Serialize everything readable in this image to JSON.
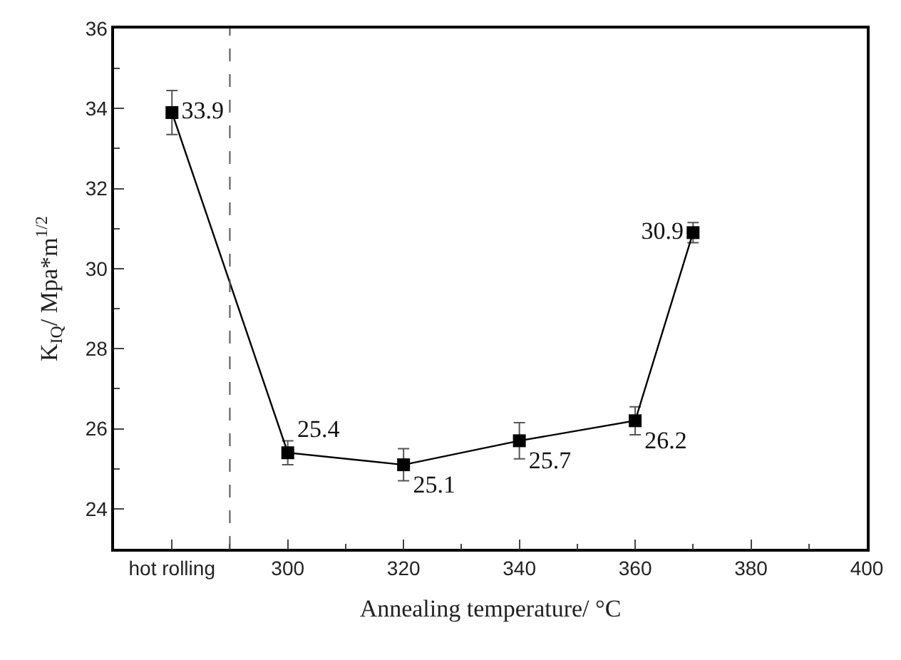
{
  "chart_data": {
    "type": "line",
    "xlabel": "Annealing temperature/ °C",
    "ylabel": "K$_{IQ}$/ Mpa*m$^{1/2}$",
    "x": [
      280,
      300,
      320,
      340,
      360,
      370
    ],
    "series": [
      {
        "color": "#000000",
        "values": [
          33.9,
          25.4,
          25.1,
          25.7,
          26.2,
          30.9
        ],
        "errors": [
          0.55,
          0.3,
          0.4,
          0.45,
          0.35,
          0.25
        ]
      }
    ],
    "xlim": [
      270,
      400
    ],
    "xticks": [
      {
        "value": 280,
        "label": "hot rolling"
      },
      300,
      320,
      340,
      360,
      380,
      400
    ],
    "ylim": [
      23,
      36
    ],
    "yticks": [
      24,
      26,
      28,
      30,
      32,
      34,
      36
    ],
    "ref_lines": [
      {
        "axis": "x",
        "value": 290,
        "color": "#555555",
        "line_style": "dashed"
      }
    ],
    "data_labels": true,
    "marker": "square",
    "line_style": "solid"
  }
}
